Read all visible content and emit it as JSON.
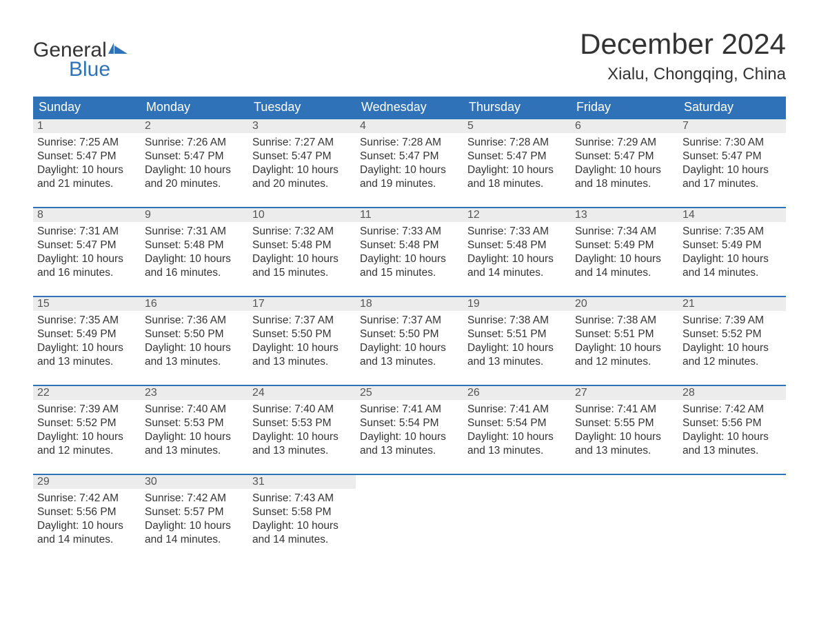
{
  "logo": {
    "line1": "General",
    "line2": "Blue",
    "flag_color": "#2f72b8"
  },
  "title": "December 2024",
  "subtitle": "Xialu, Chongqing, China",
  "colors": {
    "header_bg": "#2f72b8",
    "header_text": "#ffffff",
    "daynum_bg": "#ececec",
    "border_top": "#2f72b8",
    "text": "#333333",
    "daynum_text": "#555555",
    "page_bg": "#ffffff"
  },
  "typography": {
    "title_fontsize": 42,
    "subtitle_fontsize": 24,
    "logo_fontsize": 30,
    "th_fontsize": 18,
    "daynum_fontsize": 16,
    "cell_fontsize": 15.5
  },
  "day_headers": [
    "Sunday",
    "Monday",
    "Tuesday",
    "Wednesday",
    "Thursday",
    "Friday",
    "Saturday"
  ],
  "labels": {
    "sunrise": "Sunrise:",
    "sunset": "Sunset:",
    "daylight": "Daylight:"
  },
  "weeks": [
    [
      {
        "n": "1",
        "sunrise": "7:25 AM",
        "sunset": "5:47 PM",
        "daylight1": "10 hours",
        "daylight2": "and 21 minutes."
      },
      {
        "n": "2",
        "sunrise": "7:26 AM",
        "sunset": "5:47 PM",
        "daylight1": "10 hours",
        "daylight2": "and 20 minutes."
      },
      {
        "n": "3",
        "sunrise": "7:27 AM",
        "sunset": "5:47 PM",
        "daylight1": "10 hours",
        "daylight2": "and 20 minutes."
      },
      {
        "n": "4",
        "sunrise": "7:28 AM",
        "sunset": "5:47 PM",
        "daylight1": "10 hours",
        "daylight2": "and 19 minutes."
      },
      {
        "n": "5",
        "sunrise": "7:28 AM",
        "sunset": "5:47 PM",
        "daylight1": "10 hours",
        "daylight2": "and 18 minutes."
      },
      {
        "n": "6",
        "sunrise": "7:29 AM",
        "sunset": "5:47 PM",
        "daylight1": "10 hours",
        "daylight2": "and 18 minutes."
      },
      {
        "n": "7",
        "sunrise": "7:30 AM",
        "sunset": "5:47 PM",
        "daylight1": "10 hours",
        "daylight2": "and 17 minutes."
      }
    ],
    [
      {
        "n": "8",
        "sunrise": "7:31 AM",
        "sunset": "5:47 PM",
        "daylight1": "10 hours",
        "daylight2": "and 16 minutes."
      },
      {
        "n": "9",
        "sunrise": "7:31 AM",
        "sunset": "5:48 PM",
        "daylight1": "10 hours",
        "daylight2": "and 16 minutes."
      },
      {
        "n": "10",
        "sunrise": "7:32 AM",
        "sunset": "5:48 PM",
        "daylight1": "10 hours",
        "daylight2": "and 15 minutes."
      },
      {
        "n": "11",
        "sunrise": "7:33 AM",
        "sunset": "5:48 PM",
        "daylight1": "10 hours",
        "daylight2": "and 15 minutes."
      },
      {
        "n": "12",
        "sunrise": "7:33 AM",
        "sunset": "5:48 PM",
        "daylight1": "10 hours",
        "daylight2": "and 14 minutes."
      },
      {
        "n": "13",
        "sunrise": "7:34 AM",
        "sunset": "5:49 PM",
        "daylight1": "10 hours",
        "daylight2": "and 14 minutes."
      },
      {
        "n": "14",
        "sunrise": "7:35 AM",
        "sunset": "5:49 PM",
        "daylight1": "10 hours",
        "daylight2": "and 14 minutes."
      }
    ],
    [
      {
        "n": "15",
        "sunrise": "7:35 AM",
        "sunset": "5:49 PM",
        "daylight1": "10 hours",
        "daylight2": "and 13 minutes."
      },
      {
        "n": "16",
        "sunrise": "7:36 AM",
        "sunset": "5:50 PM",
        "daylight1": "10 hours",
        "daylight2": "and 13 minutes."
      },
      {
        "n": "17",
        "sunrise": "7:37 AM",
        "sunset": "5:50 PM",
        "daylight1": "10 hours",
        "daylight2": "and 13 minutes."
      },
      {
        "n": "18",
        "sunrise": "7:37 AM",
        "sunset": "5:50 PM",
        "daylight1": "10 hours",
        "daylight2": "and 13 minutes."
      },
      {
        "n": "19",
        "sunrise": "7:38 AM",
        "sunset": "5:51 PM",
        "daylight1": "10 hours",
        "daylight2": "and 13 minutes."
      },
      {
        "n": "20",
        "sunrise": "7:38 AM",
        "sunset": "5:51 PM",
        "daylight1": "10 hours",
        "daylight2": "and 12 minutes."
      },
      {
        "n": "21",
        "sunrise": "7:39 AM",
        "sunset": "5:52 PM",
        "daylight1": "10 hours",
        "daylight2": "and 12 minutes."
      }
    ],
    [
      {
        "n": "22",
        "sunrise": "7:39 AM",
        "sunset": "5:52 PM",
        "daylight1": "10 hours",
        "daylight2": "and 12 minutes."
      },
      {
        "n": "23",
        "sunrise": "7:40 AM",
        "sunset": "5:53 PM",
        "daylight1": "10 hours",
        "daylight2": "and 13 minutes."
      },
      {
        "n": "24",
        "sunrise": "7:40 AM",
        "sunset": "5:53 PM",
        "daylight1": "10 hours",
        "daylight2": "and 13 minutes."
      },
      {
        "n": "25",
        "sunrise": "7:41 AM",
        "sunset": "5:54 PM",
        "daylight1": "10 hours",
        "daylight2": "and 13 minutes."
      },
      {
        "n": "26",
        "sunrise": "7:41 AM",
        "sunset": "5:54 PM",
        "daylight1": "10 hours",
        "daylight2": "and 13 minutes."
      },
      {
        "n": "27",
        "sunrise": "7:41 AM",
        "sunset": "5:55 PM",
        "daylight1": "10 hours",
        "daylight2": "and 13 minutes."
      },
      {
        "n": "28",
        "sunrise": "7:42 AM",
        "sunset": "5:56 PM",
        "daylight1": "10 hours",
        "daylight2": "and 13 minutes."
      }
    ],
    [
      {
        "n": "29",
        "sunrise": "7:42 AM",
        "sunset": "5:56 PM",
        "daylight1": "10 hours",
        "daylight2": "and 14 minutes."
      },
      {
        "n": "30",
        "sunrise": "7:42 AM",
        "sunset": "5:57 PM",
        "daylight1": "10 hours",
        "daylight2": "and 14 minutes."
      },
      {
        "n": "31",
        "sunrise": "7:43 AM",
        "sunset": "5:58 PM",
        "daylight1": "10 hours",
        "daylight2": "and 14 minutes."
      },
      null,
      null,
      null,
      null
    ]
  ]
}
